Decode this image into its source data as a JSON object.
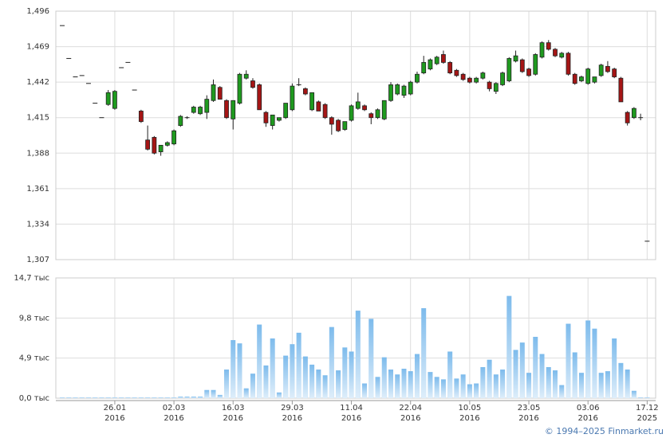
{
  "chart_data": [
    {
      "type": "candlestick",
      "open": [
        1.485,
        1.46,
        1.446,
        1.447,
        1.441,
        1.426,
        1.415,
        1.425,
        1.422,
        1.453,
        1.457,
        1.436,
        1.42,
        1.398,
        1.4,
        1.389,
        1.394,
        1.395,
        1.409,
        1.415,
        1.419,
        1.418,
        1.419,
        1.428,
        1.438,
        1.428,
        1.414,
        1.426,
        1.445,
        1.443,
        1.44,
        1.419,
        1.409,
        1.413,
        1.415,
        1.421,
        1.44,
        1.437,
        1.421,
        1.427,
        1.425,
        1.415,
        1.413,
        1.406,
        1.413,
        1.422,
        1.424,
        1.418,
        1.415,
        1.414,
        1.428,
        1.433,
        1.432,
        1.433,
        1.442,
        1.449,
        1.452,
        1.456,
        1.463,
        1.457,
        1.451,
        1.448,
        1.445,
        1.442,
        1.445,
        1.442,
        1.435,
        1.44,
        1.443,
        1.458,
        1.459,
        1.452,
        1.448,
        1.461,
        1.472,
        1.467,
        1.461,
        1.464,
        1.448,
        1.443,
        1.441,
        1.442,
        1.447,
        1.454,
        1.452,
        1.445,
        1.419,
        1.415,
        1.415,
        1.321
      ],
      "high": [
        1.485,
        1.46,
        1.446,
        1.447,
        1.441,
        1.426,
        1.415,
        1.436,
        1.436,
        1.453,
        1.457,
        1.436,
        1.421,
        1.409,
        1.401,
        1.394,
        1.397,
        1.406,
        1.417,
        1.416,
        1.424,
        1.424,
        1.432,
        1.444,
        1.439,
        1.429,
        1.428,
        1.449,
        1.451,
        1.445,
        1.441,
        1.42,
        1.417,
        1.415,
        1.426,
        1.441,
        1.445,
        1.438,
        1.434,
        1.428,
        1.426,
        1.416,
        1.414,
        1.412,
        1.425,
        1.434,
        1.425,
        1.419,
        1.422,
        1.428,
        1.442,
        1.441,
        1.44,
        1.443,
        1.45,
        1.462,
        1.46,
        1.462,
        1.466,
        1.458,
        1.452,
        1.449,
        1.446,
        1.446,
        1.45,
        1.443,
        1.442,
        1.45,
        1.461,
        1.466,
        1.46,
        1.453,
        1.464,
        1.473,
        1.474,
        1.468,
        1.465,
        1.465,
        1.449,
        1.447,
        1.453,
        1.446,
        1.456,
        1.458,
        1.453,
        1.446,
        1.42,
        1.423,
        1.418,
        1.321
      ],
      "low": [
        1.485,
        1.46,
        1.446,
        1.447,
        1.441,
        1.426,
        1.415,
        1.424,
        1.421,
        1.453,
        1.457,
        1.436,
        1.411,
        1.39,
        1.387,
        1.386,
        1.393,
        1.394,
        1.408,
        1.414,
        1.418,
        1.417,
        1.414,
        1.427,
        1.429,
        1.414,
        1.406,
        1.425,
        1.444,
        1.437,
        1.421,
        1.408,
        1.406,
        1.412,
        1.414,
        1.42,
        1.439,
        1.432,
        1.42,
        1.42,
        1.414,
        1.402,
        1.404,
        1.405,
        1.412,
        1.421,
        1.42,
        1.41,
        1.414,
        1.413,
        1.427,
        1.432,
        1.43,
        1.432,
        1.441,
        1.448,
        1.451,
        1.455,
        1.456,
        1.448,
        1.446,
        1.443,
        1.441,
        1.441,
        1.444,
        1.435,
        1.433,
        1.439,
        1.442,
        1.457,
        1.449,
        1.446,
        1.447,
        1.46,
        1.466,
        1.461,
        1.46,
        1.447,
        1.44,
        1.442,
        1.44,
        1.441,
        1.446,
        1.449,
        1.445,
        1.427,
        1.409,
        1.414,
        1.413,
        1.321
      ],
      "close": [
        1.485,
        1.46,
        1.446,
        1.447,
        1.441,
        1.426,
        1.415,
        1.434,
        1.435,
        1.453,
        1.457,
        1.436,
        1.412,
        1.391,
        1.388,
        1.394,
        1.396,
        1.405,
        1.416,
        1.415,
        1.423,
        1.423,
        1.429,
        1.44,
        1.429,
        1.415,
        1.428,
        1.448,
        1.448,
        1.438,
        1.421,
        1.411,
        1.417,
        1.415,
        1.426,
        1.439,
        1.44,
        1.433,
        1.434,
        1.42,
        1.415,
        1.41,
        1.405,
        1.412,
        1.424,
        1.427,
        1.421,
        1.415,
        1.421,
        1.428,
        1.44,
        1.44,
        1.439,
        1.442,
        1.448,
        1.457,
        1.459,
        1.461,
        1.457,
        1.449,
        1.447,
        1.444,
        1.442,
        1.445,
        1.449,
        1.437,
        1.441,
        1.449,
        1.46,
        1.462,
        1.45,
        1.447,
        1.463,
        1.472,
        1.467,
        1.462,
        1.464,
        1.448,
        1.441,
        1.446,
        1.452,
        1.446,
        1.455,
        1.45,
        1.446,
        1.427,
        1.411,
        1.422,
        1.415,
        1.321
      ],
      "up_color": "#1f9a1f",
      "down_color": "#a51515",
      "ylim": [
        1.307,
        1.496
      ],
      "yticks": [
        {
          "value": 1.307,
          "label": "1,307"
        },
        {
          "value": 1.334,
          "label": "1,334"
        },
        {
          "value": 1.361,
          "label": "1,361"
        },
        {
          "value": 1.388,
          "label": "1,388"
        },
        {
          "value": 1.415,
          "label": "1,415"
        },
        {
          "value": 1.442,
          "label": "1,442"
        },
        {
          "value": 1.469,
          "label": "1,469"
        },
        {
          "value": 1.496,
          "label": "1,496"
        }
      ],
      "grid": true
    },
    {
      "type": "bar",
      "categories": [
        null,
        null,
        null,
        null,
        null,
        null,
        null,
        null,
        "26.01\n2016",
        null,
        null,
        null,
        null,
        null,
        null,
        null,
        null,
        "02.03\n2016",
        null,
        null,
        null,
        null,
        null,
        null,
        null,
        null,
        "16.03\n2016",
        null,
        null,
        null,
        null,
        null,
        null,
        null,
        null,
        "29.03\n2016",
        null,
        null,
        null,
        null,
        null,
        null,
        null,
        null,
        "11.04\n2016",
        null,
        null,
        null,
        null,
        null,
        null,
        null,
        null,
        "22.04\n2016",
        null,
        null,
        null,
        null,
        null,
        null,
        null,
        null,
        "10.05\n2016",
        null,
        null,
        null,
        null,
        null,
        null,
        null,
        null,
        "23.05\n2016",
        null,
        null,
        null,
        null,
        null,
        null,
        null,
        null,
        "03.06\n2016",
        null,
        null,
        null,
        null,
        null,
        null,
        null,
        null,
        "17.12\n2025"
      ],
      "values": [
        0.1,
        0.1,
        0.1,
        0.1,
        0.1,
        0.1,
        0.1,
        0.1,
        0.1,
        0.1,
        0.1,
        0.1,
        0.1,
        0.1,
        0.1,
        0.1,
        0.1,
        0.1,
        0.2,
        0.2,
        0.2,
        0.2,
        1.0,
        1.0,
        0.4,
        3.5,
        7.1,
        6.7,
        1.2,
        3.0,
        9.0,
        4.0,
        7.3,
        0.7,
        5.2,
        6.6,
        8.0,
        5.1,
        4.1,
        3.5,
        2.8,
        8.7,
        3.4,
        6.2,
        5.7,
        10.7,
        1.8,
        9.7,
        2.6,
        5.0,
        3.5,
        2.9,
        3.6,
        3.3,
        5.4,
        11.0,
        3.2,
        2.6,
        2.3,
        5.7,
        2.4,
        2.9,
        1.7,
        1.8,
        3.8,
        4.7,
        2.9,
        3.5,
        12.5,
        5.9,
        6.8,
        3.1,
        7.5,
        5.4,
        3.8,
        3.4,
        1.6,
        9.1,
        5.6,
        3.1,
        9.5,
        8.5,
        3.1,
        3.3,
        7.3,
        4.3,
        3.5,
        0.9,
        0.1,
        0.1
      ],
      "color": "#7dbbec",
      "ylim": [
        0,
        14.7
      ],
      "yticks": [
        {
          "value": 0,
          "label": "0,0 тыс"
        },
        {
          "value": 4.9,
          "label": "4,9 тыс"
        },
        {
          "value": 9.8,
          "label": "9,8 тыс"
        },
        {
          "value": 14.7,
          "label": "14,7 тыс"
        }
      ],
      "grid": true
    }
  ],
  "footer": "© 1994–2025 Finmarket.ru"
}
